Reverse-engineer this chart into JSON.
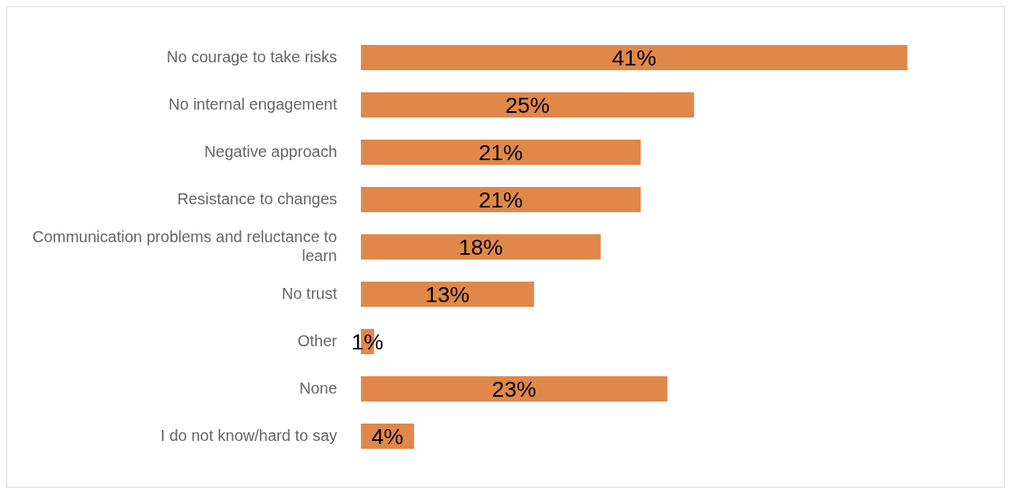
{
  "chart_data": {
    "type": "bar",
    "orientation": "horizontal",
    "categories": [
      "No courage to take risks",
      "No internal engagement",
      "Negative approach",
      "Resistance to changes",
      "Communication problems and reluctance to learn",
      "No trust",
      "Other",
      "None",
      "I do not know/hard to say"
    ],
    "values": [
      41,
      25,
      21,
      21,
      18,
      13,
      1,
      23,
      4
    ],
    "value_labels": [
      "41%",
      "25%",
      "21%",
      "21%",
      "18%",
      "13%",
      "1%",
      "23%",
      "4%"
    ],
    "color": "#e0874a",
    "xlim": [
      0,
      48
    ],
    "legend": false,
    "tick_labels": "y"
  }
}
